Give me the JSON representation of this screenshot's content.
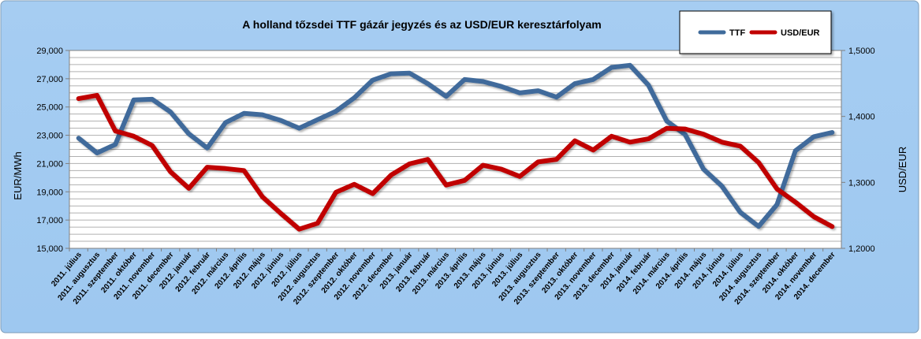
{
  "chart_data": {
    "type": "line",
    "title": "A holland tőzsdei TTF gázár jegyzés és az USD/EUR keresztárfolyam",
    "ylabel": "EUR/MWh",
    "y2label": "USD/EUR",
    "ylim": [
      15000,
      29000
    ],
    "y2lim": [
      1.2,
      1.5
    ],
    "yticks": [
      "15,000",
      "17,000",
      "19,000",
      "21,000",
      "23,000",
      "25,000",
      "27,000",
      "29,000"
    ],
    "y2ticks": [
      "1,2000",
      "1,3000",
      "1,4000",
      "1,5000"
    ],
    "grid": true,
    "legend": "top-right",
    "categories": [
      "2011. július",
      "2011. augusztus",
      "2011. szeptember",
      "2011. október",
      "2011. november",
      "2011. december",
      "2012. január",
      "2012. február",
      "2012. március",
      "2012. április",
      "2012. május",
      "2012. június",
      "2012. július",
      "2012. augusztus",
      "2012. szeptember",
      "2012. október",
      "2012. november",
      "2012. december",
      "2013. január",
      "2013. február",
      "2013. március",
      "2013. április",
      "2013. május",
      "2013. június",
      "2013. július",
      "2013. augusztus",
      "2013. szeptember",
      "2013. október",
      "2013. november",
      "2013. december",
      "2014. január",
      "2014. február",
      "2014. március",
      "2014. április",
      "2014. május",
      "2014. június",
      "2014. július",
      "2014. augusztus",
      "2014. szeptember",
      "2014. október",
      "2014. november",
      "2014. december"
    ],
    "series": [
      {
        "name": "TTF",
        "axis": "left",
        "color": "#3f6b9b",
        "values": [
          22800,
          21750,
          22350,
          25500,
          25550,
          24650,
          23100,
          22100,
          23900,
          24550,
          24450,
          24050,
          23500,
          24100,
          24700,
          25650,
          26900,
          27350,
          27400,
          26650,
          25750,
          26950,
          26800,
          26450,
          26000,
          26150,
          25700,
          26650,
          26950,
          27800,
          27950,
          26550,
          24000,
          23050,
          20600,
          19400,
          17550,
          16550,
          18100,
          21900,
          22900,
          23200
        ]
      },
      {
        "name": "USD/EUR",
        "axis": "right",
        "color": "#c00000",
        "values": [
          1.427,
          1.432,
          1.378,
          1.37,
          1.356,
          1.316,
          1.291,
          1.323,
          1.321,
          1.318,
          1.278,
          1.253,
          1.229,
          1.238,
          1.285,
          1.297,
          1.283,
          1.311,
          1.328,
          1.335,
          1.296,
          1.303,
          1.326,
          1.32,
          1.309,
          1.331,
          1.335,
          1.363,
          1.349,
          1.37,
          1.361,
          1.366,
          1.382,
          1.381,
          1.373,
          1.361,
          1.355,
          1.33,
          1.29,
          1.27,
          1.248,
          1.233
        ]
      }
    ]
  }
}
